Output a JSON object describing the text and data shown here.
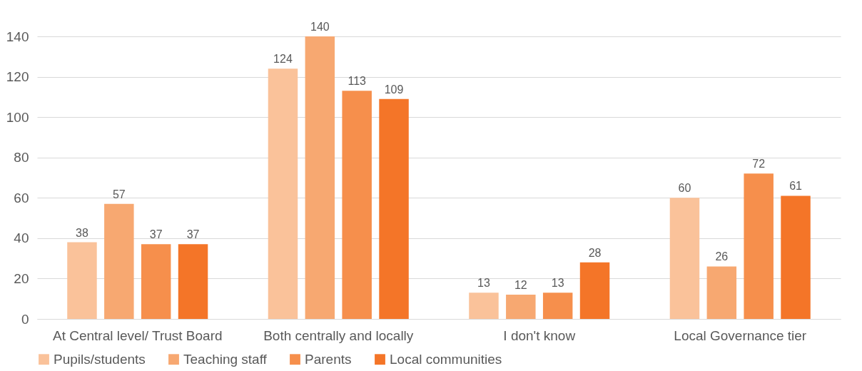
{
  "chart_data": {
    "type": "bar",
    "categories": [
      "At Central level/ Trust Board",
      "Both centrally and locally",
      "I don't know",
      "Local Governance tier"
    ],
    "series": [
      {
        "name": "Pupils/students",
        "color": "#fac29a",
        "values": [
          38,
          124,
          13,
          60
        ]
      },
      {
        "name": "Teaching staff",
        "color": "#f7a871",
        "values": [
          57,
          140,
          12,
          26
        ]
      },
      {
        "name": "Parents",
        "color": "#f68f4c",
        "values": [
          37,
          113,
          13,
          72
        ]
      },
      {
        "name": "Local communities",
        "color": "#f47528",
        "values": [
          37,
          109,
          28,
          61
        ]
      }
    ],
    "ylim": [
      0,
      140
    ],
    "yticks": [
      0,
      20,
      40,
      60,
      80,
      100,
      120,
      140
    ],
    "grid": "y",
    "legend": "bottom",
    "data_labels": true
  }
}
